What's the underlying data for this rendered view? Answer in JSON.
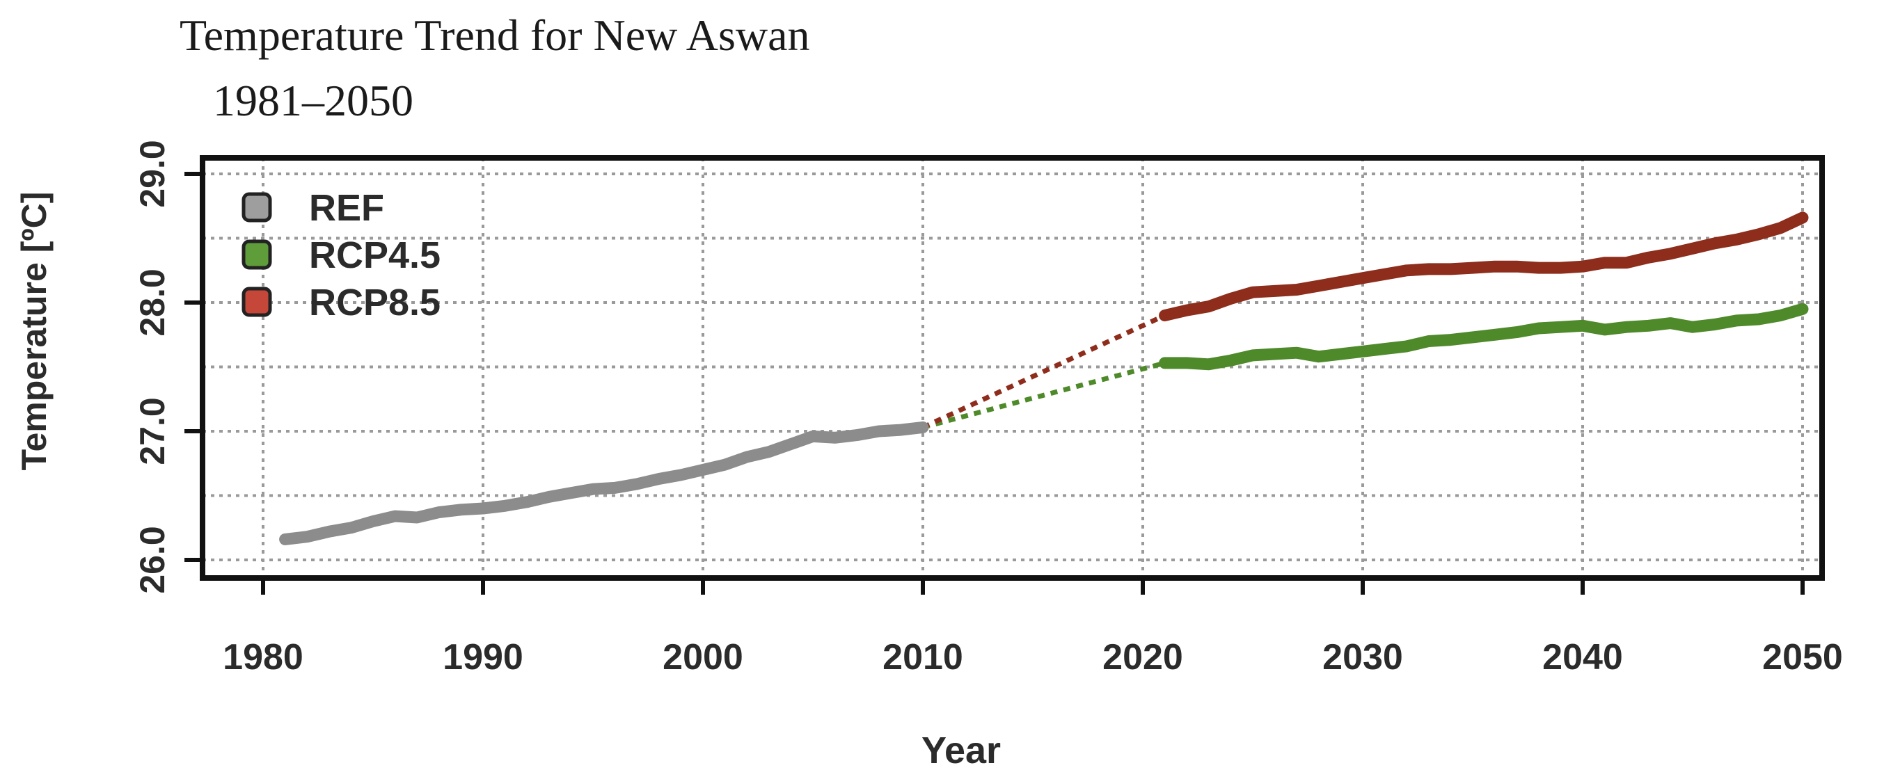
{
  "chart_data": {
    "type": "line",
    "title": "Temperature Trend for New Aswan",
    "subtitle": "1981–2050",
    "xlabel": "Year",
    "ylabel": "Temperature [ºC]",
    "xlim": [
      1978,
      2051
    ],
    "ylim": [
      25.95,
      29.2
    ],
    "xticks": [
      1980,
      1990,
      2000,
      2010,
      2020,
      2030,
      2040,
      2050
    ],
    "xtick_labels": [
      "1980",
      "1990",
      "2000",
      "2010",
      "2020",
      "2030",
      "2040",
      "2050"
    ],
    "yticks": [
      26.0,
      27.0,
      28.0,
      29.0
    ],
    "ytick_labels": [
      "26.0",
      "27.0",
      "28.0",
      "29.0"
    ],
    "grid_y": [
      26.0,
      26.5,
      27.0,
      27.5,
      28.0,
      28.5,
      29.0
    ],
    "grid": true,
    "legend_position": "top-left",
    "series": [
      {
        "name": "REF",
        "color": "#8c8c8c",
        "x": [
          1981,
          1982,
          1983,
          1984,
          1985,
          1986,
          1987,
          1988,
          1989,
          1990,
          1991,
          1992,
          1993,
          1994,
          1995,
          1996,
          1997,
          1998,
          1999,
          2000,
          2001,
          2002,
          2003,
          2004,
          2005,
          2006,
          2007,
          2008,
          2009,
          2010
        ],
        "y": [
          26.16,
          26.18,
          26.22,
          26.25,
          26.3,
          26.34,
          26.33,
          26.37,
          26.39,
          26.4,
          26.42,
          26.45,
          26.49,
          26.52,
          26.55,
          26.56,
          26.59,
          26.63,
          26.66,
          26.7,
          26.74,
          26.8,
          26.84,
          26.9,
          26.96,
          26.95,
          26.97,
          27.0,
          27.01,
          27.03
        ]
      },
      {
        "name": "RCP4.5",
        "color": "#4e8a2a",
        "x": [
          2021,
          2022,
          2023,
          2024,
          2025,
          2026,
          2027,
          2028,
          2029,
          2030,
          2031,
          2032,
          2033,
          2034,
          2035,
          2036,
          2037,
          2038,
          2039,
          2040,
          2041,
          2042,
          2043,
          2044,
          2045,
          2046,
          2047,
          2048,
          2049,
          2050
        ],
        "y": [
          27.53,
          27.53,
          27.52,
          27.55,
          27.59,
          27.6,
          27.61,
          27.58,
          27.6,
          27.62,
          27.64,
          27.66,
          27.7,
          27.71,
          27.73,
          27.75,
          27.77,
          27.8,
          27.81,
          27.82,
          27.79,
          27.81,
          27.82,
          27.84,
          27.81,
          27.83,
          27.86,
          27.87,
          27.9,
          27.95
        ]
      },
      {
        "name": "RCP8.5",
        "color": "#8e2d1c",
        "x": [
          2021,
          2022,
          2023,
          2024,
          2025,
          2026,
          2027,
          2028,
          2029,
          2030,
          2031,
          2032,
          2033,
          2034,
          2035,
          2036,
          2037,
          2038,
          2039,
          2040,
          2041,
          2042,
          2043,
          2044,
          2045,
          2046,
          2047,
          2048,
          2049,
          2050
        ],
        "y": [
          27.9,
          27.94,
          27.97,
          28.03,
          28.08,
          28.09,
          28.1,
          28.13,
          28.16,
          28.19,
          28.22,
          28.25,
          28.26,
          28.26,
          28.27,
          28.28,
          28.28,
          28.27,
          28.27,
          28.28,
          28.31,
          28.31,
          28.35,
          28.38,
          28.42,
          28.46,
          28.49,
          28.53,
          28.58,
          28.66
        ]
      }
    ],
    "connectors": [
      {
        "series": "RCP4.5",
        "color": "#4e8a2a",
        "from": [
          2010,
          27.03
        ],
        "to": [
          2021,
          27.53
        ]
      },
      {
        "series": "RCP8.5",
        "color": "#8e2d1c",
        "from": [
          2010,
          27.03
        ],
        "to": [
          2021,
          27.9
        ]
      }
    ]
  }
}
